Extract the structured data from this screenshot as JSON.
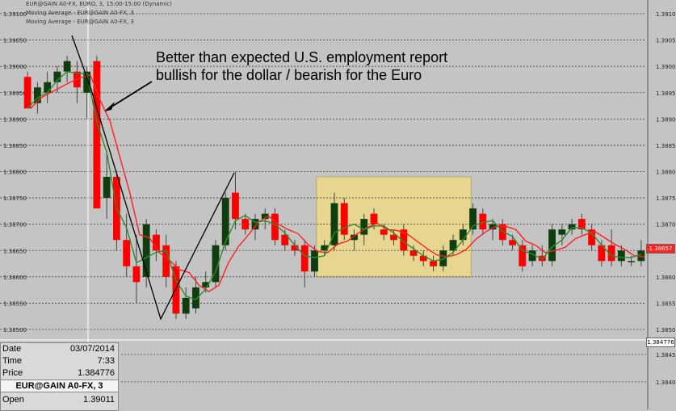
{
  "header": {
    "line1": "EUR@GAIN A0-FX, EURO, 3, 15:00-15:00 (Dynamic)",
    "line2": "Moving Average - EUR@GAIN A0-FX, 3",
    "line3": "Moving Average - EUR@GAIN A0-FX, 3"
  },
  "annotation": {
    "line1": "Better than expected U.S. employment report",
    "line2": "bullish for the dollar / bearish for the Euro"
  },
  "info_panel": {
    "date_label": "Date",
    "date_value": "03/07/2014",
    "time_label": "Time",
    "time_value": "7:33",
    "price_label": "Price",
    "price_value": "1.384776",
    "symbol": "EUR@GAIN A0-FX, 3",
    "open_label": "Open",
    "open_value": "1.39011"
  },
  "price_tags": {
    "current": "1.38657",
    "cursor": "1.384776"
  },
  "colors": {
    "background": "#c4c4c4",
    "bull": "#0f3d0f",
    "bear": "#ff0000",
    "ma_fast": "#2e8b2e",
    "ma_slow": "#ff2020",
    "highlight": "#e6d690"
  },
  "chart_data": {
    "type": "candlestick",
    "y_axis_ticks": [
      "1.39100",
      "1.39050",
      "1.39000",
      "1.38950",
      "1.38900",
      "1.38850",
      "1.38800",
      "1.38750",
      "1.38700",
      "1.38650",
      "1.38600",
      "1.38550",
      "1.38500"
    ],
    "lower_axis_ticks": [
      "1.38450",
      "1.38400"
    ],
    "ylim": [
      1.385,
      1.391
    ],
    "grid": true,
    "series": [
      {
        "name": "Moving Average - EUR@GAIN A0-FX, 3",
        "color": "#2e8b2e"
      },
      {
        "name": "Moving Average - EUR@GAIN A0-FX, 3",
        "color": "#ff2020"
      }
    ],
    "candles": [
      {
        "o": 1.3898,
        "h": 1.3899,
        "l": 1.3892,
        "c": 1.3892
      },
      {
        "o": 1.3893,
        "h": 1.3897,
        "l": 1.3891,
        "c": 1.3896
      },
      {
        "o": 1.3895,
        "h": 1.3899,
        "l": 1.3893,
        "c": 1.3897
      },
      {
        "o": 1.3897,
        "h": 1.39,
        "l": 1.3895,
        "c": 1.3899
      },
      {
        "o": 1.3899,
        "h": 1.3902,
        "l": 1.3897,
        "c": 1.3901
      },
      {
        "o": 1.3899,
        "h": 1.3901,
        "l": 1.3893,
        "c": 1.3896
      },
      {
        "o": 1.3895,
        "h": 1.39,
        "l": 1.389,
        "c": 1.3899
      },
      {
        "o": 1.3901,
        "h": 1.3902,
        "l": 1.3873,
        "c": 1.3873
      },
      {
        "o": 1.3875,
        "h": 1.3884,
        "l": 1.3871,
        "c": 1.3879
      },
      {
        "o": 1.3879,
        "h": 1.388,
        "l": 1.3865,
        "c": 1.3867
      },
      {
        "o": 1.3867,
        "h": 1.3872,
        "l": 1.386,
        "c": 1.3862
      },
      {
        "o": 1.3862,
        "h": 1.3868,
        "l": 1.3855,
        "c": 1.3859
      },
      {
        "o": 1.386,
        "h": 1.3871,
        "l": 1.3858,
        "c": 1.387
      },
      {
        "o": 1.3868,
        "h": 1.3869,
        "l": 1.3863,
        "c": 1.3865
      },
      {
        "o": 1.3866,
        "h": 1.3868,
        "l": 1.3858,
        "c": 1.386
      },
      {
        "o": 1.3862,
        "h": 1.3863,
        "l": 1.3852,
        "c": 1.3853
      },
      {
        "o": 1.3853,
        "h": 1.3858,
        "l": 1.3852,
        "c": 1.3856
      },
      {
        "o": 1.3854,
        "h": 1.386,
        "l": 1.3853,
        "c": 1.3858
      },
      {
        "o": 1.3858,
        "h": 1.3861,
        "l": 1.3857,
        "c": 1.3859
      },
      {
        "o": 1.3859,
        "h": 1.3867,
        "l": 1.3858,
        "c": 1.3866
      },
      {
        "o": 1.3866,
        "h": 1.3876,
        "l": 1.3865,
        "c": 1.3875
      },
      {
        "o": 1.3876,
        "h": 1.388,
        "l": 1.3869,
        "c": 1.3871
      },
      {
        "o": 1.3871,
        "h": 1.3872,
        "l": 1.3868,
        "c": 1.3869
      },
      {
        "o": 1.3869,
        "h": 1.3872,
        "l": 1.3867,
        "c": 1.3871
      },
      {
        "o": 1.3871,
        "h": 1.3873,
        "l": 1.3869,
        "c": 1.3872
      },
      {
        "o": 1.3872,
        "h": 1.3873,
        "l": 1.3866,
        "c": 1.3867
      },
      {
        "o": 1.3868,
        "h": 1.3869,
        "l": 1.3865,
        "c": 1.3866
      },
      {
        "o": 1.3866,
        "h": 1.3867,
        "l": 1.3864,
        "c": 1.3865
      },
      {
        "o": 1.3866,
        "h": 1.3867,
        "l": 1.3858,
        "c": 1.3861
      },
      {
        "o": 1.3861,
        "h": 1.3866,
        "l": 1.386,
        "c": 1.3865
      },
      {
        "o": 1.3865,
        "h": 1.3867,
        "l": 1.3864,
        "c": 1.3866
      },
      {
        "o": 1.3866,
        "h": 1.3876,
        "l": 1.3865,
        "c": 1.3874
      },
      {
        "o": 1.3874,
        "h": 1.3875,
        "l": 1.3867,
        "c": 1.3868
      },
      {
        "o": 1.3867,
        "h": 1.3869,
        "l": 1.3865,
        "c": 1.3868
      },
      {
        "o": 1.3868,
        "h": 1.3872,
        "l": 1.3866,
        "c": 1.3871
      },
      {
        "o": 1.3872,
        "h": 1.3873,
        "l": 1.3869,
        "c": 1.387
      },
      {
        "o": 1.3869,
        "h": 1.387,
        "l": 1.3867,
        "c": 1.3868
      },
      {
        "o": 1.3868,
        "h": 1.3869,
        "l": 1.3866,
        "c": 1.3867
      },
      {
        "o": 1.3869,
        "h": 1.387,
        "l": 1.3864,
        "c": 1.3865
      },
      {
        "o": 1.3865,
        "h": 1.3866,
        "l": 1.3863,
        "c": 1.3864
      },
      {
        "o": 1.3864,
        "h": 1.3865,
        "l": 1.3862,
        "c": 1.3863
      },
      {
        "o": 1.3863,
        "h": 1.3864,
        "l": 1.3861,
        "c": 1.3862
      },
      {
        "o": 1.3862,
        "h": 1.3866,
        "l": 1.3861,
        "c": 1.3865
      },
      {
        "o": 1.3865,
        "h": 1.3868,
        "l": 1.3864,
        "c": 1.3867
      },
      {
        "o": 1.3867,
        "h": 1.387,
        "l": 1.3866,
        "c": 1.3869
      },
      {
        "o": 1.3869,
        "h": 1.3874,
        "l": 1.3868,
        "c": 1.3873
      },
      {
        "o": 1.3872,
        "h": 1.3873,
        "l": 1.3868,
        "c": 1.3869
      },
      {
        "o": 1.3869,
        "h": 1.3871,
        "l": 1.3867,
        "c": 1.387
      },
      {
        "o": 1.387,
        "h": 1.3871,
        "l": 1.3866,
        "c": 1.3867
      },
      {
        "o": 1.3867,
        "h": 1.3868,
        "l": 1.3865,
        "c": 1.3866
      },
      {
        "o": 1.3866,
        "h": 1.3867,
        "l": 1.3861,
        "c": 1.3862
      },
      {
        "o": 1.3863,
        "h": 1.3866,
        "l": 1.3862,
        "c": 1.3865
      },
      {
        "o": 1.3864,
        "h": 1.3866,
        "l": 1.3862,
        "c": 1.3863
      },
      {
        "o": 1.3863,
        "h": 1.387,
        "l": 1.3862,
        "c": 1.3869
      },
      {
        "o": 1.3868,
        "h": 1.387,
        "l": 1.3866,
        "c": 1.3869
      },
      {
        "o": 1.3869,
        "h": 1.3871,
        "l": 1.3868,
        "c": 1.387
      },
      {
        "o": 1.3871,
        "h": 1.3872,
        "l": 1.3868,
        "c": 1.3869
      },
      {
        "o": 1.3869,
        "h": 1.387,
        "l": 1.3865,
        "c": 1.3866
      },
      {
        "o": 1.3866,
        "h": 1.3867,
        "l": 1.3862,
        "c": 1.3863
      },
      {
        "o": 1.3866,
        "h": 1.3869,
        "l": 1.3862,
        "c": 1.3863
      },
      {
        "o": 1.3863,
        "h": 1.3866,
        "l": 1.3862,
        "c": 1.3865
      },
      {
        "o": 1.3863,
        "h": 1.3864,
        "l": 1.3862,
        "c": 1.3863
      },
      {
        "o": 1.3863,
        "h": 1.3867,
        "l": 1.3862,
        "c": 1.3865
      }
    ]
  }
}
